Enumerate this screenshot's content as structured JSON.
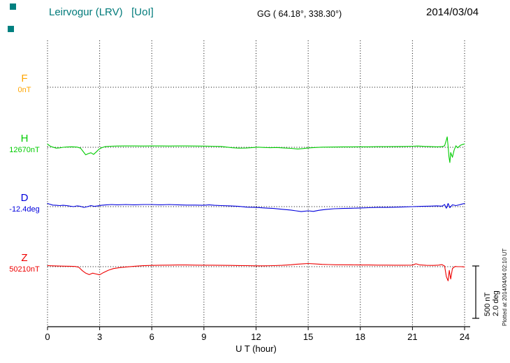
{
  "header": {
    "station_title": "Leirvogur (LRV)   [UoI]",
    "title_color": "#007a7a",
    "gg_coords": "GG ( 64.18°, 338.30°)",
    "date": "2014/03/04"
  },
  "decorations": {
    "marker_color": "#008080"
  },
  "components": [
    {
      "id": "F",
      "label": "F",
      "value_label": "0nT",
      "color": "#ffa500"
    },
    {
      "id": "H",
      "label": "H",
      "value_label": "12670nT",
      "color": "#00cc00"
    },
    {
      "id": "D",
      "label": "D",
      "value_label": "-12.4deg",
      "color": "#0000dd"
    },
    {
      "id": "Z",
      "label": "Z",
      "value_label": "50210nT",
      "color": "#ee0000"
    }
  ],
  "axis": {
    "x_label": "U T (hour)"
  },
  "scalebar": {
    "nt_label": "500 nT",
    "deg_label": "2.0 deg"
  },
  "footer_note": "Plotted at 2014/04/04 02:10 UT",
  "chart_data": {
    "type": "line",
    "title": "Leirvogur (LRV) [UoI] magnetogram",
    "date": "2014/03/04",
    "xlabel": "U T (hour)",
    "x_range": [
      0,
      24
    ],
    "x_ticks": [
      0,
      3,
      6,
      9,
      12,
      15,
      18,
      21,
      24
    ],
    "grid": "dotted vertical lines every 3 h, dotted horizontal baseline per component",
    "legend_position": "left",
    "scale_bar": {
      "nT": 500,
      "deg": 2.0
    },
    "series": [
      {
        "id": "F",
        "name": "F",
        "units": "nT",
        "baseline_label": "0nT",
        "points": []
      },
      {
        "id": "H",
        "name": "H",
        "units": "nT",
        "baseline_label": "12670nT",
        "points": [
          [
            0,
            30
          ],
          [
            0.15,
            12
          ],
          [
            0.3,
            2
          ],
          [
            0.5,
            -8
          ],
          [
            0.7,
            -5
          ],
          [
            0.9,
            0
          ],
          [
            1.1,
            3
          ],
          [
            1.4,
            5
          ],
          [
            1.7,
            2
          ],
          [
            1.9,
            -8
          ],
          [
            2.05,
            -40
          ],
          [
            2.2,
            -72
          ],
          [
            2.35,
            -60
          ],
          [
            2.5,
            -52
          ],
          [
            2.65,
            -68
          ],
          [
            2.8,
            -45
          ],
          [
            2.95,
            -20
          ],
          [
            3.1,
            -5
          ],
          [
            3.3,
            6
          ],
          [
            3.6,
            10
          ],
          [
            4,
            12
          ],
          [
            4.5,
            13
          ],
          [
            5,
            13
          ],
          [
            5.5,
            12
          ],
          [
            6,
            13
          ],
          [
            6.5,
            13
          ],
          [
            7,
            12
          ],
          [
            7.5,
            13
          ],
          [
            8,
            13
          ],
          [
            8.5,
            12
          ],
          [
            9,
            11
          ],
          [
            9.5,
            10
          ],
          [
            10,
            8
          ],
          [
            10.3,
            2
          ],
          [
            10.6,
            -4
          ],
          [
            11,
            -8
          ],
          [
            11.4,
            -7
          ],
          [
            11.8,
            -3
          ],
          [
            12.1,
            1
          ],
          [
            12.4,
            -1
          ],
          [
            12.8,
            -4
          ],
          [
            13.2,
            -2
          ],
          [
            13.6,
            -6
          ],
          [
            14,
            -10
          ],
          [
            14.4,
            -16
          ],
          [
            14.7,
            -12
          ],
          [
            15,
            -6
          ],
          [
            15.4,
            -2
          ],
          [
            15.8,
            1
          ],
          [
            16.2,
            2
          ],
          [
            16.6,
            3
          ],
          [
            17,
            4
          ],
          [
            17.5,
            4
          ],
          [
            18,
            5
          ],
          [
            18.5,
            5
          ],
          [
            19,
            6
          ],
          [
            19.5,
            6
          ],
          [
            20,
            7
          ],
          [
            20.5,
            8
          ],
          [
            21,
            10
          ],
          [
            21.3,
            12
          ],
          [
            21.7,
            9
          ],
          [
            22,
            7
          ],
          [
            22.4,
            5
          ],
          [
            22.7,
            6
          ],
          [
            22.85,
            15
          ],
          [
            22.95,
            70
          ],
          [
            23,
            100
          ],
          [
            23.05,
            10
          ],
          [
            23.1,
            -90
          ],
          [
            23.15,
            -145
          ],
          [
            23.2,
            -50
          ],
          [
            23.3,
            -95
          ],
          [
            23.4,
            -25
          ],
          [
            23.5,
            15
          ],
          [
            23.6,
            -5
          ],
          [
            23.75,
            18
          ],
          [
            23.9,
            28
          ],
          [
            24,
            33
          ]
        ]
      },
      {
        "id": "D",
        "name": "D",
        "units": "deg",
        "baseline_label": "-12.4deg",
        "points": [
          [
            0,
            0.12
          ],
          [
            0.15,
            0.09
          ],
          [
            0.3,
            0.06
          ],
          [
            0.5,
            0.05
          ],
          [
            0.7,
            0.04
          ],
          [
            0.9,
            0.05
          ],
          [
            1.1,
            0.04
          ],
          [
            1.3,
            0.02
          ],
          [
            1.5,
            0
          ],
          [
            1.7,
            0.03
          ],
          [
            1.9,
            0.01
          ],
          [
            2.1,
            -0.03
          ],
          [
            2.3,
            0
          ],
          [
            2.5,
            0.04
          ],
          [
            2.7,
            0.01
          ],
          [
            2.9,
            0.03
          ],
          [
            3.1,
            0.05
          ],
          [
            3.4,
            0.07
          ],
          [
            3.7,
            0.08
          ],
          [
            4,
            0.07
          ],
          [
            4.5,
            0.08
          ],
          [
            5,
            0.07
          ],
          [
            5.5,
            0.08
          ],
          [
            6,
            0.08
          ],
          [
            6.5,
            0.07
          ],
          [
            7,
            0.08
          ],
          [
            7.5,
            0.07
          ],
          [
            8,
            0.06
          ],
          [
            8.5,
            0.06
          ],
          [
            9,
            0.05
          ],
          [
            9.3,
            0.07
          ],
          [
            9.6,
            0.05
          ],
          [
            10,
            0.04
          ],
          [
            10.5,
            0.03
          ],
          [
            11,
            0.01
          ],
          [
            11.5,
            -0.02
          ],
          [
            12,
            -0.03
          ],
          [
            12.5,
            -0.05
          ],
          [
            13,
            -0.07
          ],
          [
            13.5,
            -0.1
          ],
          [
            14,
            -0.13
          ],
          [
            14.3,
            -0.16
          ],
          [
            14.6,
            -0.19
          ],
          [
            15,
            -0.16
          ],
          [
            15.3,
            -0.18
          ],
          [
            15.6,
            -0.14
          ],
          [
            16,
            -0.11
          ],
          [
            16.5,
            -0.08
          ],
          [
            17,
            -0.07
          ],
          [
            17.5,
            -0.06
          ],
          [
            18,
            -0.05
          ],
          [
            18.5,
            -0.04
          ],
          [
            19,
            -0.03
          ],
          [
            19.5,
            -0.03
          ],
          [
            20,
            -0.02
          ],
          [
            20.5,
            -0.01
          ],
          [
            21,
            0
          ],
          [
            21.5,
            0.01
          ],
          [
            22,
            0.02
          ],
          [
            22.4,
            0.03
          ],
          [
            22.7,
            0.02
          ],
          [
            22.85,
            0.08
          ],
          [
            22.95,
            -0.06
          ],
          [
            23.05,
            0.12
          ],
          [
            23.15,
            -0.04
          ],
          [
            23.3,
            0.07
          ],
          [
            23.5,
            0.04
          ],
          [
            23.7,
            0.07
          ],
          [
            23.85,
            0.1
          ],
          [
            24,
            0.12
          ]
        ]
      },
      {
        "id": "Z",
        "name": "Z",
        "units": "nT",
        "baseline_label": "50210nT",
        "points": [
          [
            0,
            10
          ],
          [
            0.3,
            8
          ],
          [
            0.6,
            6
          ],
          [
            1,
            5
          ],
          [
            1.3,
            4
          ],
          [
            1.6,
            2
          ],
          [
            1.8,
            -6
          ],
          [
            2,
            -38
          ],
          [
            2.2,
            -62
          ],
          [
            2.4,
            -76
          ],
          [
            2.6,
            -62
          ],
          [
            2.8,
            -70
          ],
          [
            3,
            -78
          ],
          [
            3.2,
            -58
          ],
          [
            3.5,
            -34
          ],
          [
            3.8,
            -18
          ],
          [
            4.2,
            -8
          ],
          [
            4.6,
            -2
          ],
          [
            5,
            4
          ],
          [
            5.5,
            9
          ],
          [
            6,
            12
          ],
          [
            6.5,
            14
          ],
          [
            7,
            15
          ],
          [
            7.5,
            16
          ],
          [
            8,
            16
          ],
          [
            8.5,
            15
          ],
          [
            9,
            14
          ],
          [
            9.5,
            14
          ],
          [
            10,
            13
          ],
          [
            10.5,
            12
          ],
          [
            11,
            11
          ],
          [
            11.5,
            10
          ],
          [
            12,
            8
          ],
          [
            12.5,
            8
          ],
          [
            13,
            10
          ],
          [
            13.5,
            13
          ],
          [
            14,
            18
          ],
          [
            14.3,
            23
          ],
          [
            14.7,
            27
          ],
          [
            15,
            30
          ],
          [
            15.4,
            26
          ],
          [
            15.8,
            22
          ],
          [
            16.2,
            20
          ],
          [
            16.6,
            18
          ],
          [
            17,
            18
          ],
          [
            17.5,
            17
          ],
          [
            18,
            16
          ],
          [
            18.5,
            16
          ],
          [
            19,
            15
          ],
          [
            19.5,
            15
          ],
          [
            20,
            14
          ],
          [
            20.5,
            14
          ],
          [
            21,
            15
          ],
          [
            21.2,
            27
          ],
          [
            21.4,
            17
          ],
          [
            21.8,
            13
          ],
          [
            22.2,
            12
          ],
          [
            22.5,
            15
          ],
          [
            22.7,
            19
          ],
          [
            22.85,
            6
          ],
          [
            22.95,
            -95
          ],
          [
            23.05,
            -135
          ],
          [
            23.12,
            -35
          ],
          [
            23.2,
            -118
          ],
          [
            23.3,
            -18
          ],
          [
            23.45,
            2
          ],
          [
            23.6,
            0
          ],
          [
            23.8,
            0
          ],
          [
            24,
            -3
          ]
        ]
      }
    ]
  }
}
